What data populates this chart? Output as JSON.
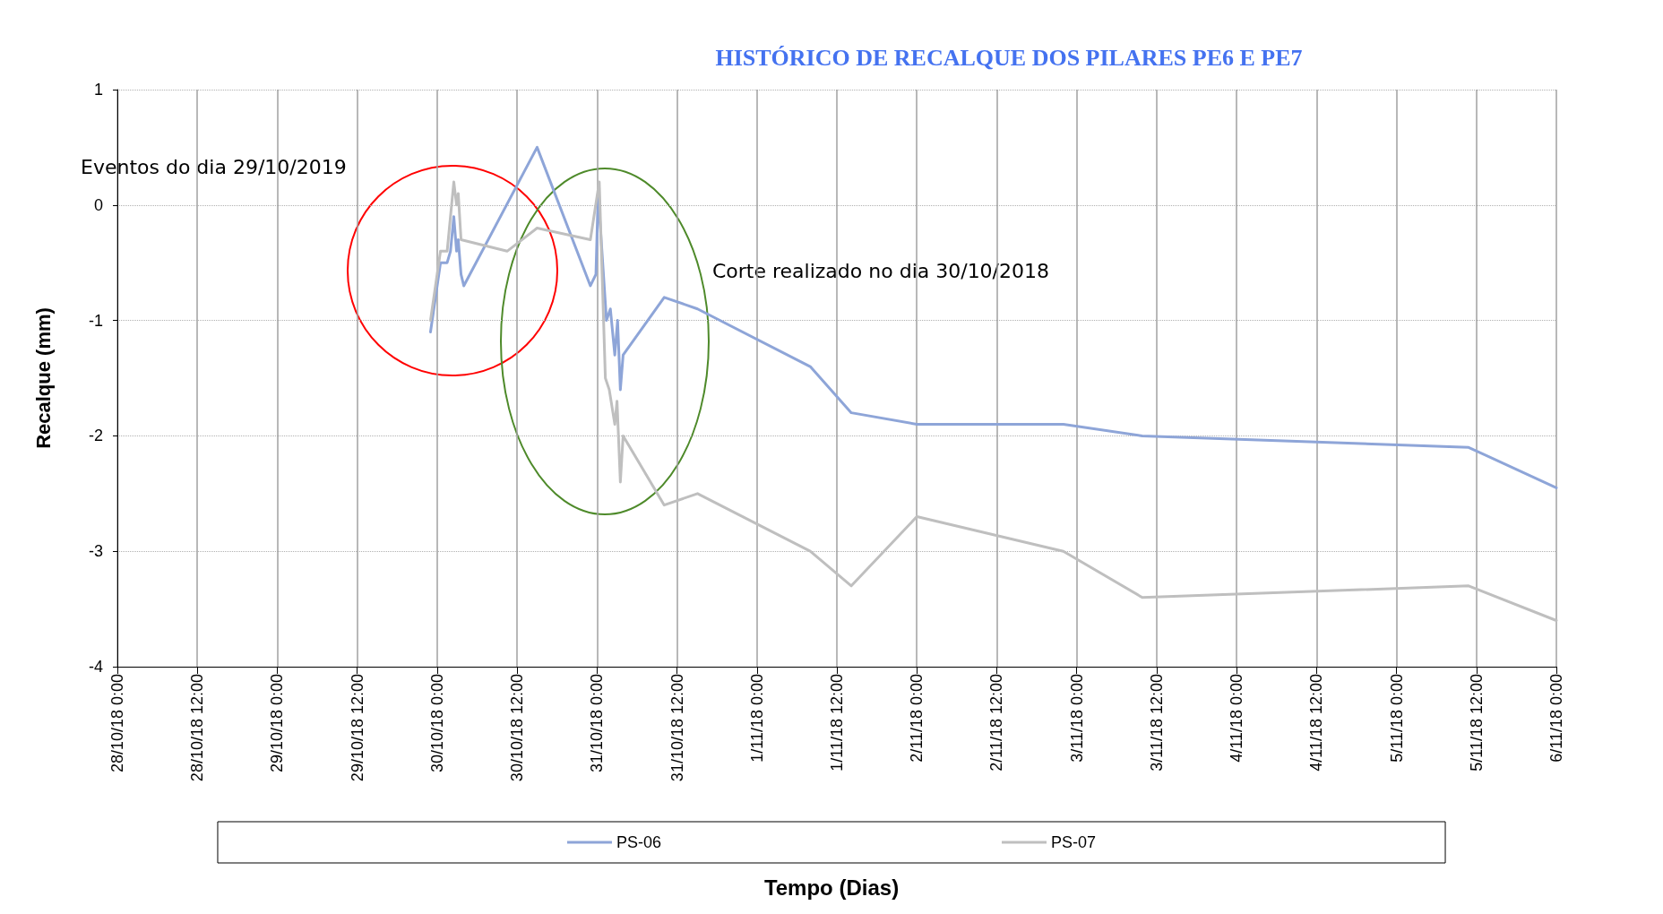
{
  "chart_data": {
    "type": "line",
    "title": "HISTÓRICO DE RECALQUE DOS PILARES PE6 E PE7",
    "xlabel": "Tempo (Dias)",
    "ylabel": "Recalque (mm)",
    "annotations": [
      "Eventos do dia 29/10/2019",
      "Corte realizado no dia 30/10/2018"
    ],
    "xlim": [
      "2018-10-28T00:00",
      "2018-11-06T00:00"
    ],
    "xticks": [
      {
        "value": "2018-10-28T00:00",
        "label": "28/10/18 0:00"
      },
      {
        "value": "2018-10-28T12:00",
        "label": "28/10/18 12:00"
      },
      {
        "value": "2018-10-29T00:00",
        "label": "29/10/18 0:00"
      },
      {
        "value": "2018-10-29T12:00",
        "label": "29/10/18 12:00"
      },
      {
        "value": "2018-10-30T00:00",
        "label": "30/10/18 0:00"
      },
      {
        "value": "2018-10-30T12:00",
        "label": "30/10/18 12:00"
      },
      {
        "value": "2018-10-31T00:00",
        "label": "31/10/18 0:00"
      },
      {
        "value": "2018-10-31T12:00",
        "label": "31/10/18 12:00"
      },
      {
        "value": "2018-11-01T00:00",
        "label": "1/11/18 0:00"
      },
      {
        "value": "2018-11-01T12:00",
        "label": "1/11/18 12:00"
      },
      {
        "value": "2018-11-02T00:00",
        "label": "2/11/18 0:00"
      },
      {
        "value": "2018-11-02T12:00",
        "label": "2/11/18 12:00"
      },
      {
        "value": "2018-11-03T00:00",
        "label": "3/11/18 0:00"
      },
      {
        "value": "2018-11-03T12:00",
        "label": "3/11/18 12:00"
      },
      {
        "value": "2018-11-04T00:00",
        "label": "4/11/18 0:00"
      },
      {
        "value": "2018-11-04T12:00",
        "label": "4/11/18 12:00"
      },
      {
        "value": "2018-11-05T00:00",
        "label": "5/11/18 0:00"
      },
      {
        "value": "2018-11-05T12:00",
        "label": "5/11/18 12:00"
      },
      {
        "value": "2018-11-06T00:00",
        "label": "6/11/18 0:00"
      }
    ],
    "ylim": [
      -4,
      1
    ],
    "yticks": [
      -4,
      -3,
      -2,
      -1,
      0,
      1
    ],
    "grid": true,
    "legend": "bottom",
    "marker": "none",
    "line_style": "solid",
    "series": [
      {
        "name": "PS-06",
        "color": "#8ea5d8",
        "x": [
          "2018-10-29T23:00",
          "2018-10-30T00:30",
          "2018-10-30T01:30",
          "2018-10-30T02:00",
          "2018-10-30T02:30",
          "2018-10-30T02:55",
          "2018-10-30T03:10",
          "2018-10-30T03:35",
          "2018-10-30T04:00",
          "2018-10-30T15:00",
          "2018-10-30T23:00",
          "2018-10-30T23:50",
          "2018-10-31T00:10",
          "2018-10-31T01:25",
          "2018-10-31T02:00",
          "2018-10-31T02:40",
          "2018-10-31T03:05",
          "2018-10-31T03:30",
          "2018-10-31T03:55",
          "2018-10-31T10:05",
          "2018-10-31T15:05",
          "2018-11-01T08:00",
          "2018-11-01T14:10",
          "2018-11-02T00:00",
          "2018-11-02T22:00",
          "2018-11-03T09:50",
          "2018-11-05T10:50",
          "2018-11-06T00:00"
        ],
        "values": [
          -1.1,
          -0.5,
          -0.5,
          -0.4,
          -0.1,
          -0.4,
          -0.3,
          -0.6,
          -0.7,
          0.5,
          -0.7,
          -0.6,
          0.1,
          -1.0,
          -0.9,
          -1.3,
          -1.0,
          -1.6,
          -1.3,
          -0.8,
          -0.9,
          -1.4,
          -1.8,
          -1.9,
          -1.9,
          -2.0,
          -2.1,
          -2.45
        ]
      },
      {
        "name": "PS-07",
        "color": "#bfbfbf",
        "x": [
          "2018-10-29T23:00",
          "2018-10-30T00:30",
          "2018-10-30T01:30",
          "2018-10-30T01:50",
          "2018-10-30T02:30",
          "2018-10-30T02:55",
          "2018-10-30T03:10",
          "2018-10-30T03:35",
          "2018-10-30T10:30",
          "2018-10-30T15:00",
          "2018-10-30T23:00",
          "2018-10-31T00:20",
          "2018-10-31T01:15",
          "2018-10-31T01:50",
          "2018-10-31T02:40",
          "2018-10-31T03:00",
          "2018-10-31T03:30",
          "2018-10-31T03:55",
          "2018-10-31T10:05",
          "2018-10-31T15:05",
          "2018-11-01T08:00",
          "2018-11-01T14:10",
          "2018-11-02T00:00",
          "2018-11-02T22:00",
          "2018-11-03T09:50",
          "2018-11-05T10:50",
          "2018-11-06T00:00"
        ],
        "values": [
          -1.0,
          -0.4,
          -0.4,
          -0.2,
          0.2,
          0.0,
          0.1,
          -0.3,
          -0.4,
          -0.2,
          -0.3,
          0.2,
          -1.5,
          -1.6,
          -1.9,
          -1.7,
          -2.4,
          -2.0,
          -2.6,
          -2.5,
          -3.0,
          -3.3,
          -2.7,
          -3.0,
          -3.4,
          -3.3,
          -3.6
        ]
      }
    ]
  }
}
